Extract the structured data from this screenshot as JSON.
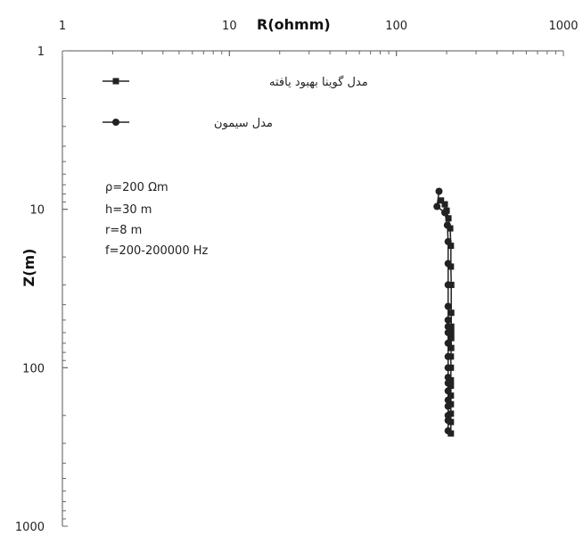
{
  "chart_data": {
    "type": "line",
    "xlabel": "R(ohmm)",
    "ylabel": "Z(m)",
    "x_scale": "log",
    "y_scale": "log",
    "y_inverted": true,
    "x_axis_position": "top",
    "xlim": [
      1,
      1000
    ],
    "ylim": [
      1,
      1000
    ],
    "x_ticks": [
      "1",
      "10",
      "100",
      "1000"
    ],
    "y_ticks": [
      "1",
      "10",
      "100",
      "1000"
    ],
    "grid": false,
    "legend_position": "top-left",
    "series": [
      {
        "name": "مدل گوینا بهبود یافته",
        "marker": "square",
        "color": "#222222",
        "points": [
          {
            "x": 185,
            "y": 8.8
          },
          {
            "x": 195,
            "y": 9.3
          },
          {
            "x": 200,
            "y": 10.2
          },
          {
            "x": 205,
            "y": 11.4
          },
          {
            "x": 210,
            "y": 13.2
          },
          {
            "x": 212,
            "y": 17
          },
          {
            "x": 212,
            "y": 23
          },
          {
            "x": 213,
            "y": 30
          },
          {
            "x": 213,
            "y": 45
          },
          {
            "x": 213,
            "y": 55
          },
          {
            "x": 213,
            "y": 60
          },
          {
            "x": 213,
            "y": 65
          },
          {
            "x": 213,
            "y": 75
          },
          {
            "x": 212,
            "y": 85
          },
          {
            "x": 212,
            "y": 100
          },
          {
            "x": 212,
            "y": 120
          },
          {
            "x": 212,
            "y": 130
          },
          {
            "x": 212,
            "y": 150
          },
          {
            "x": 212,
            "y": 170
          },
          {
            "x": 212,
            "y": 195
          },
          {
            "x": 212,
            "y": 220
          },
          {
            "x": 212,
            "y": 260
          }
        ]
      },
      {
        "name": "مدل سیمون",
        "marker": "circle",
        "color": "#222222",
        "points": [
          {
            "x": 180,
            "y": 7.7
          },
          {
            "x": 175,
            "y": 9.6
          },
          {
            "x": 195,
            "y": 10.5
          },
          {
            "x": 202,
            "y": 12.6
          },
          {
            "x": 204,
            "y": 16
          },
          {
            "x": 204,
            "y": 22
          },
          {
            "x": 204,
            "y": 30
          },
          {
            "x": 204,
            "y": 41
          },
          {
            "x": 204,
            "y": 50
          },
          {
            "x": 204,
            "y": 55
          },
          {
            "x": 204,
            "y": 60
          },
          {
            "x": 204,
            "y": 70
          },
          {
            "x": 204,
            "y": 85
          },
          {
            "x": 204,
            "y": 100
          },
          {
            "x": 204,
            "y": 115
          },
          {
            "x": 204,
            "y": 125
          },
          {
            "x": 204,
            "y": 140
          },
          {
            "x": 204,
            "y": 160
          },
          {
            "x": 204,
            "y": 175
          },
          {
            "x": 204,
            "y": 200
          },
          {
            "x": 204,
            "y": 215
          },
          {
            "x": 204,
            "y": 250
          }
        ]
      }
    ],
    "annotations": [
      "ρ=200  Ωm",
      "h=30 m",
      "r=8 m",
      "f=200-200000 Hz"
    ]
  }
}
